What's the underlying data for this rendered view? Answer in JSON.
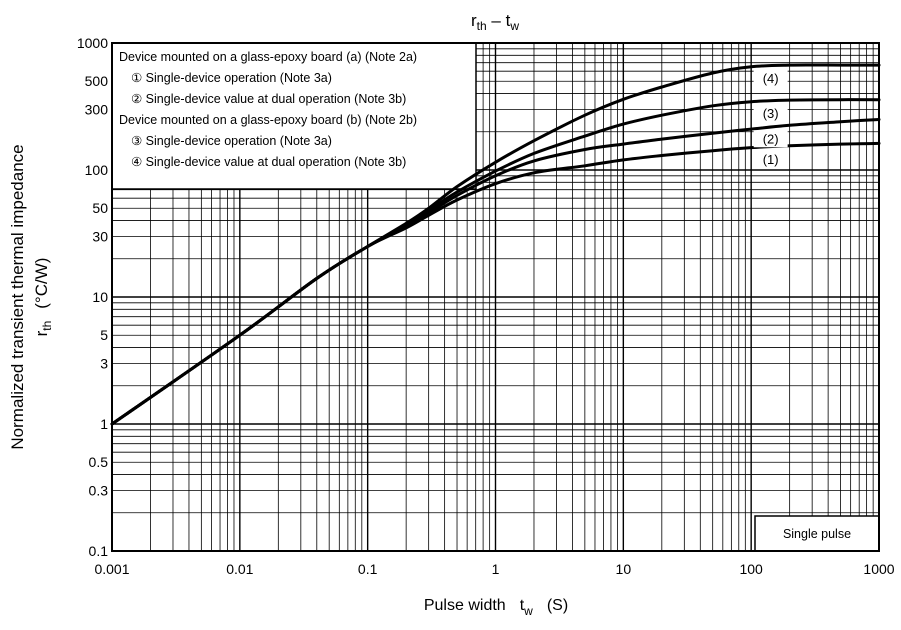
{
  "chart_data": {
    "type": "line",
    "title_main": "r",
    "title_main_sub": "th",
    "title_sep": " – ",
    "title_t": "t",
    "title_t_sub": "w",
    "xlabel": "Pulse width",
    "xlabel_symbol": "t",
    "xlabel_symbol_sub": "w",
    "xlabel_unit": "(S)",
    "ylabel_line1": "Normalized transient thermal impedance",
    "ylabel_symbol": "r",
    "ylabel_symbol_sub": "th",
    "ylabel_unit": "(°C/W)",
    "x_scale": "log",
    "y_scale": "log",
    "xlim": [
      0.001,
      1000
    ],
    "ylim": [
      0.1,
      1000
    ],
    "x_tick_labels": [
      "0.001",
      "0.01",
      "0.1",
      "1",
      "10",
      "100",
      "1000"
    ],
    "x_ticks": [
      0.001,
      0.01,
      0.1,
      1,
      10,
      100,
      1000
    ],
    "y_tick_labels": [
      "0.1",
      "0.3",
      "0.5",
      "1",
      "3",
      "5",
      "10",
      "30",
      "50",
      "100",
      "300",
      "500",
      "1000"
    ],
    "y_ticks": [
      0.1,
      0.3,
      0.5,
      1,
      3,
      5,
      10,
      30,
      50,
      100,
      300,
      500,
      1000
    ],
    "grid": true,
    "legend_box": [
      "Device mounted on a glass-epoxy board (a) (Note 2a)",
      "① Single-device operation (Note 3a)",
      "② Single-device value at dual operation (Note 3b)",
      "Device mounted on a glass-epoxy board (b) (Note 2b)",
      "③ Single-device operation (Note 3a)",
      "④ Single-device value at dual operation (Note 3b)"
    ],
    "legend_placement": "top-left",
    "annotation": "Single pulse",
    "series": [
      {
        "name": "(1)",
        "x": [
          0.001,
          0.01,
          0.04,
          0.1,
          0.2,
          0.3,
          0.5,
          1,
          2,
          5,
          10,
          20,
          50,
          100,
          200,
          500,
          1000
        ],
        "y": [
          1,
          5,
          14,
          25,
          35,
          44,
          58,
          78,
          95,
          108,
          120,
          130,
          142,
          150,
          155,
          160,
          162
        ]
      },
      {
        "name": "(2)",
        "x": [
          0.001,
          0.01,
          0.04,
          0.1,
          0.2,
          0.3,
          0.5,
          1,
          2,
          5,
          10,
          20,
          50,
          100,
          200,
          500,
          1000
        ],
        "y": [
          1,
          5,
          14,
          25,
          36,
          46,
          63,
          90,
          118,
          145,
          160,
          175,
          195,
          210,
          225,
          240,
          250
        ]
      },
      {
        "name": "(3)",
        "x": [
          0.001,
          0.01,
          0.04,
          0.1,
          0.2,
          0.3,
          0.5,
          1,
          2,
          5,
          10,
          20,
          50,
          100,
          200,
          500,
          1000
        ],
        "y": [
          1,
          5,
          14,
          25,
          37,
          48,
          67,
          98,
          135,
          185,
          230,
          270,
          320,
          345,
          355,
          358,
          358
        ]
      },
      {
        "name": "(4)",
        "x": [
          0.001,
          0.01,
          0.04,
          0.1,
          0.2,
          0.3,
          0.5,
          1,
          2,
          5,
          10,
          20,
          50,
          100,
          200,
          500,
          1000
        ],
        "y": [
          1,
          5,
          14,
          25,
          38,
          50,
          74,
          115,
          170,
          270,
          360,
          450,
          580,
          650,
          670,
          670,
          670
        ]
      }
    ]
  }
}
